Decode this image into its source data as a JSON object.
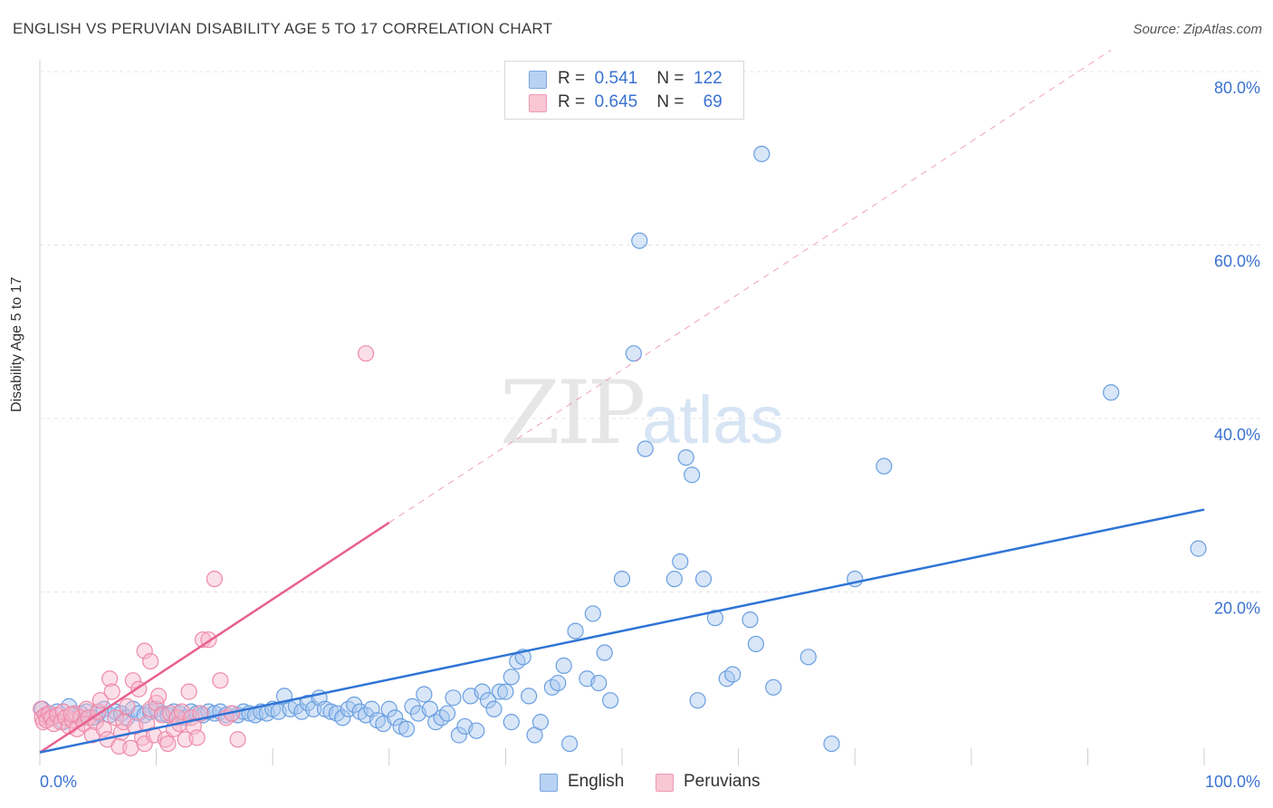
{
  "title": "ENGLISH VS PERUVIAN DISABILITY AGE 5 TO 17 CORRELATION CHART",
  "source": "Source: ZipAtlas.com",
  "watermark": {
    "zip": "ZIP",
    "atlas": "atlas"
  },
  "legend": {
    "english": {
      "r_label": "R =",
      "r_value": "0.541",
      "n_label": "N =",
      "n_value": "122"
    },
    "peruvians": {
      "r_label": "R =",
      "r_value": "0.645",
      "n_label": "N =",
      "n_value": "69"
    }
  },
  "bottom_legend": {
    "english": "English",
    "peruvians": "Peruvians"
  },
  "colors": {
    "english_fill": "#a8c8f0",
    "english_stroke": "#6a9fe0",
    "english_line": "#2f74d6",
    "peru_fill": "#f6b9cc",
    "peru_stroke": "#ee8aa9",
    "peru_line": "#e8608f",
    "axis_text": "#3a72d1",
    "grid": "#e4e4e4"
  },
  "chart_data": {
    "type": "scatter",
    "title": "ENGLISH VS PERUVIAN DISABILITY AGE 5 TO 17 CORRELATION CHART",
    "xlabel": "",
    "ylabel": "Disability Age 5 to 17",
    "xlim": [
      0,
      100
    ],
    "ylim": [
      0,
      80
    ],
    "x_tick_labels": [
      "0.0%",
      "100.0%"
    ],
    "y_ticks": [
      20,
      40,
      60,
      80
    ],
    "y_tick_labels": [
      "20.0%",
      "40.0%",
      "60.0%",
      "80.0%"
    ],
    "series": [
      {
        "name": "English",
        "R": 0.541,
        "N": 122,
        "trend": {
          "x": [
            0,
            100
          ],
          "y": [
            1.5,
            29.5
          ],
          "dashed_extension": false
        },
        "points": [
          [
            0.2,
            6.5
          ],
          [
            0.5,
            5.8
          ],
          [
            0.8,
            6.0
          ],
          [
            1.0,
            5.5
          ],
          [
            1.5,
            6.2
          ],
          [
            2.0,
            5.0
          ],
          [
            2.5,
            6.8
          ],
          [
            3.0,
            5.8
          ],
          [
            3.5,
            6.0
          ],
          [
            4.0,
            6.2
          ],
          [
            4.5,
            5.5
          ],
          [
            5.0,
            6.0
          ],
          [
            5.5,
            6.5
          ],
          [
            6.0,
            5.8
          ],
          [
            6.5,
            6.2
          ],
          [
            7.0,
            6.0
          ],
          [
            7.5,
            5.5
          ],
          [
            8.0,
            6.5
          ],
          [
            8.5,
            6.0
          ],
          [
            9.0,
            5.8
          ],
          [
            9.5,
            6.2
          ],
          [
            10.0,
            6.5
          ],
          [
            10.5,
            6.0
          ],
          [
            11.0,
            5.8
          ],
          [
            11.5,
            6.2
          ],
          [
            12.0,
            6.0
          ],
          [
            12.5,
            5.5
          ],
          [
            13.0,
            6.2
          ],
          [
            13.5,
            6.0
          ],
          [
            14.0,
            5.8
          ],
          [
            14.5,
            6.2
          ],
          [
            15.0,
            6.0
          ],
          [
            15.5,
            6.2
          ],
          [
            16.0,
            5.8
          ],
          [
            16.5,
            6.0
          ],
          [
            17.0,
            5.8
          ],
          [
            17.5,
            6.2
          ],
          [
            18.0,
            6.0
          ],
          [
            18.5,
            5.8
          ],
          [
            19.0,
            6.2
          ],
          [
            19.5,
            6.0
          ],
          [
            20.0,
            6.5
          ],
          [
            20.5,
            6.2
          ],
          [
            21.0,
            8.0
          ],
          [
            21.5,
            6.5
          ],
          [
            22.0,
            6.8
          ],
          [
            22.5,
            6.2
          ],
          [
            23.0,
            7.2
          ],
          [
            23.5,
            6.5
          ],
          [
            24.0,
            7.8
          ],
          [
            24.5,
            6.5
          ],
          [
            25.0,
            6.2
          ],
          [
            25.5,
            6.0
          ],
          [
            26.0,
            5.5
          ],
          [
            26.5,
            6.5
          ],
          [
            27.0,
            7.0
          ],
          [
            27.5,
            6.2
          ],
          [
            28.0,
            5.8
          ],
          [
            28.5,
            6.5
          ],
          [
            29.0,
            5.2
          ],
          [
            29.5,
            4.8
          ],
          [
            30.0,
            6.5
          ],
          [
            30.5,
            5.5
          ],
          [
            31.0,
            4.5
          ],
          [
            31.5,
            4.2
          ],
          [
            32.0,
            6.8
          ],
          [
            32.5,
            6.0
          ],
          [
            33.0,
            8.2
          ],
          [
            33.5,
            6.5
          ],
          [
            34.0,
            5.0
          ],
          [
            34.5,
            5.5
          ],
          [
            35.0,
            6.0
          ],
          [
            35.5,
            7.8
          ],
          [
            36.0,
            3.5
          ],
          [
            36.5,
            4.5
          ],
          [
            37.0,
            8.0
          ],
          [
            37.5,
            4.0
          ],
          [
            38.0,
            8.5
          ],
          [
            38.5,
            7.5
          ],
          [
            39.0,
            6.5
          ],
          [
            39.5,
            8.5
          ],
          [
            40.0,
            8.5
          ],
          [
            40.5,
            5.0
          ],
          [
            41.0,
            12.0
          ],
          [
            41.5,
            12.5
          ],
          [
            42.0,
            8.0
          ],
          [
            42.5,
            3.5
          ],
          [
            43.0,
            5.0
          ],
          [
            44.0,
            9.0
          ],
          [
            44.5,
            9.5
          ],
          [
            45.0,
            11.5
          ],
          [
            45.5,
            2.5
          ],
          [
            46.0,
            15.5
          ],
          [
            47.0,
            10.0
          ],
          [
            47.5,
            17.5
          ],
          [
            48.0,
            9.5
          ],
          [
            48.5,
            13.0
          ],
          [
            49.0,
            7.5
          ],
          [
            50.0,
            21.5
          ],
          [
            51.0,
            47.5
          ],
          [
            51.5,
            60.5
          ],
          [
            52.0,
            36.5
          ],
          [
            54.5,
            21.5
          ],
          [
            55.0,
            23.5
          ],
          [
            55.5,
            35.5
          ],
          [
            56.0,
            33.5
          ],
          [
            56.5,
            7.5
          ],
          [
            57.0,
            21.5
          ],
          [
            58.0,
            17.0
          ],
          [
            59.0,
            10.0
          ],
          [
            59.5,
            10.5
          ],
          [
            61.5,
            14.0
          ],
          [
            62.0,
            70.5
          ],
          [
            63.0,
            9.0
          ],
          [
            66.0,
            12.5
          ],
          [
            68.0,
            2.5
          ],
          [
            70.0,
            21.5
          ],
          [
            72.5,
            34.5
          ],
          [
            92.0,
            43.0
          ],
          [
            99.5,
            25.0
          ],
          [
            40.5,
            10.2
          ],
          [
            61.0,
            16.8
          ]
        ]
      },
      {
        "name": "Peruvians",
        "R": 0.645,
        "N": 69,
        "trend": {
          "x": [
            0,
            30
          ],
          "y": [
            1.5,
            28.0
          ],
          "dashed_extension": {
            "x": [
              30,
              100
            ],
            "y": [
              28.0,
              89.5
            ]
          }
        },
        "points": [
          [
            0.1,
            6.5
          ],
          [
            0.2,
            5.5
          ],
          [
            0.3,
            5.0
          ],
          [
            0.5,
            5.8
          ],
          [
            0.6,
            5.2
          ],
          [
            0.8,
            6.0
          ],
          [
            1.0,
            5.5
          ],
          [
            1.2,
            4.8
          ],
          [
            1.5,
            5.8
          ],
          [
            1.8,
            5.0
          ],
          [
            2.0,
            6.2
          ],
          [
            2.2,
            5.5
          ],
          [
            2.5,
            4.5
          ],
          [
            2.8,
            5.2
          ],
          [
            3.0,
            6.0
          ],
          [
            3.2,
            4.2
          ],
          [
            3.5,
            5.5
          ],
          [
            3.8,
            4.8
          ],
          [
            4.0,
            6.5
          ],
          [
            4.2,
            5.5
          ],
          [
            4.5,
            3.5
          ],
          [
            4.8,
            5.0
          ],
          [
            5.0,
            6.2
          ],
          [
            5.2,
            7.5
          ],
          [
            5.5,
            4.2
          ],
          [
            5.8,
            3.0
          ],
          [
            6.0,
            10.0
          ],
          [
            6.2,
            8.5
          ],
          [
            6.5,
            5.5
          ],
          [
            6.8,
            2.2
          ],
          [
            7.0,
            3.8
          ],
          [
            7.2,
            5.0
          ],
          [
            7.5,
            6.8
          ],
          [
            7.8,
            2.0
          ],
          [
            8.0,
            9.8
          ],
          [
            8.2,
            4.5
          ],
          [
            8.5,
            8.8
          ],
          [
            8.8,
            3.2
          ],
          [
            9.0,
            2.5
          ],
          [
            9.2,
            4.8
          ],
          [
            9.5,
            6.5
          ],
          [
            9.8,
            3.5
          ],
          [
            10.0,
            7.2
          ],
          [
            10.2,
            8.0
          ],
          [
            10.5,
            5.8
          ],
          [
            10.8,
            3.0
          ],
          [
            11.0,
            2.5
          ],
          [
            11.2,
            6.0
          ],
          [
            11.5,
            4.2
          ],
          [
            11.8,
            5.5
          ],
          [
            12.0,
            4.8
          ],
          [
            12.2,
            6.2
          ],
          [
            12.5,
            3.0
          ],
          [
            12.8,
            8.5
          ],
          [
            13.0,
            5.5
          ],
          [
            13.2,
            4.5
          ],
          [
            13.5,
            3.2
          ],
          [
            13.8,
            6.0
          ],
          [
            14.0,
            14.5
          ],
          [
            14.5,
            14.5
          ],
          [
            15.0,
            21.5
          ],
          [
            15.5,
            9.8
          ],
          [
            16.0,
            5.5
          ],
          [
            16.5,
            6.0
          ],
          [
            17.0,
            3.0
          ],
          [
            28.0,
            47.5
          ],
          [
            9.0,
            13.2
          ],
          [
            9.5,
            12.0
          ],
          [
            2.7,
            5.9
          ]
        ]
      }
    ]
  }
}
